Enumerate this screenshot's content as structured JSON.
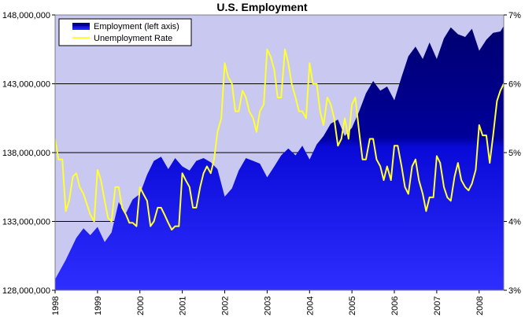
{
  "chart_data": {
    "type": "area",
    "title": "U.S. Employment",
    "legend_placement": "top-left",
    "colors": {
      "plot_bg": "#c8c8f0",
      "employment_top": "#00007a",
      "employment_bottom": "#2a2aff",
      "rate_line": "#ffff33",
      "grid": "#000000"
    },
    "y_left": {
      "min": 128000000,
      "max": 148000000,
      "ticks": [
        128000000,
        133000000,
        138000000,
        143000000,
        148000000
      ],
      "tick_labels": [
        "128,000,000",
        "133,000,000",
        "138,000,000",
        "143,000,000",
        "148,000,000"
      ]
    },
    "y_right": {
      "min": 3,
      "max": 7,
      "ticks": [
        3,
        4,
        5,
        6,
        7
      ],
      "tick_labels": [
        "3%",
        "4%",
        "5%",
        "6%",
        "7%"
      ]
    },
    "x_axis": {
      "min": 1998,
      "max": 2008.58,
      "ticks": [
        1998,
        1999,
        2000,
        2001,
        2002,
        2003,
        2004,
        2005,
        2006,
        2007,
        2008
      ],
      "tick_labels": [
        "1998",
        "1999",
        "2000",
        "2001",
        "2002",
        "2003",
        "2004",
        "2005",
        "2006",
        "2007",
        "2008"
      ]
    },
    "grid": "horizontal",
    "series": [
      {
        "name": "Employment (left axis)",
        "axis": "left",
        "kind": "area",
        "x": [
          1998.0,
          1998.25,
          1998.5,
          1998.67,
          1998.83,
          1999.0,
          1999.17,
          1999.33,
          1999.5,
          1999.67,
          1999.83,
          2000.0,
          2000.17,
          2000.33,
          2000.5,
          2000.67,
          2000.83,
          2001.0,
          2001.17,
          2001.33,
          2001.5,
          2001.67,
          2001.83,
          2002.0,
          2002.17,
          2002.33,
          2002.5,
          2002.67,
          2002.83,
          2003.0,
          2003.17,
          2003.33,
          2003.5,
          2003.67,
          2003.83,
          2004.0,
          2004.17,
          2004.33,
          2004.5,
          2004.67,
          2004.83,
          2005.0,
          2005.17,
          2005.33,
          2005.5,
          2005.67,
          2005.83,
          2006.0,
          2006.17,
          2006.33,
          2006.5,
          2006.67,
          2006.83,
          2007.0,
          2007.17,
          2007.33,
          2007.5,
          2007.67,
          2007.83,
          2008.0,
          2008.17,
          2008.33,
          2008.5,
          2008.58
        ],
        "values": [
          128800000,
          130200000,
          131800000,
          132500000,
          132000000,
          132600000,
          131500000,
          132200000,
          134400000,
          133600000,
          134600000,
          135000000,
          136400000,
          137400000,
          137700000,
          136800000,
          137600000,
          137000000,
          136700000,
          137400000,
          137600000,
          137300000,
          136800000,
          134800000,
          135400000,
          136700000,
          137600000,
          137400000,
          137200000,
          136200000,
          137000000,
          137800000,
          138300000,
          137800000,
          138500000,
          137500000,
          138600000,
          139200000,
          140100000,
          140400000,
          139200000,
          139800000,
          141000000,
          142300000,
          143200000,
          142500000,
          142800000,
          141800000,
          143500000,
          145000000,
          145700000,
          144800000,
          146000000,
          144800000,
          146300000,
          147100000,
          146600000,
          146400000,
          147000000,
          145400000,
          146200000,
          146700000,
          146800000,
          147200000
        ]
      },
      {
        "name": "Unemployment Rate",
        "axis": "right",
        "kind": "line",
        "x": [
          1998.0,
          1998.08,
          1998.17,
          1998.25,
          1998.33,
          1998.42,
          1998.5,
          1998.58,
          1998.67,
          1998.75,
          1998.83,
          1998.92,
          1999.0,
          1999.08,
          1999.17,
          1999.25,
          1999.33,
          1999.42,
          1999.5,
          1999.58,
          1999.67,
          1999.75,
          1999.83,
          1999.92,
          2000.0,
          2000.08,
          2000.17,
          2000.25,
          2000.33,
          2000.42,
          2000.5,
          2000.58,
          2000.67,
          2000.75,
          2000.83,
          2000.92,
          2001.0,
          2001.08,
          2001.17,
          2001.25,
          2001.33,
          2001.42,
          2001.5,
          2001.58,
          2001.67,
          2001.75,
          2001.83,
          2001.92,
          2002.0,
          2002.08,
          2002.17,
          2002.25,
          2002.33,
          2002.42,
          2002.5,
          2002.58,
          2002.67,
          2002.75,
          2002.83,
          2002.92,
          2003.0,
          2003.08,
          2003.17,
          2003.25,
          2003.33,
          2003.42,
          2003.5,
          2003.58,
          2003.67,
          2003.75,
          2003.83,
          2003.92,
          2004.0,
          2004.08,
          2004.17,
          2004.25,
          2004.33,
          2004.42,
          2004.5,
          2004.58,
          2004.67,
          2004.75,
          2004.83,
          2004.92,
          2005.0,
          2005.08,
          2005.17,
          2005.25,
          2005.33,
          2005.42,
          2005.5,
          2005.58,
          2005.67,
          2005.75,
          2005.83,
          2005.92,
          2006.0,
          2006.08,
          2006.17,
          2006.25,
          2006.33,
          2006.42,
          2006.5,
          2006.58,
          2006.67,
          2006.75,
          2006.83,
          2006.92,
          2007.0,
          2007.08,
          2007.17,
          2007.25,
          2007.33,
          2007.42,
          2007.5,
          2007.58,
          2007.67,
          2007.75,
          2007.83,
          2007.92,
          2008.0,
          2008.08,
          2008.17,
          2008.25,
          2008.33,
          2008.42,
          2008.5,
          2008.58
        ],
        "values": [
          5.2,
          4.9,
          4.9,
          4.15,
          4.3,
          4.65,
          4.7,
          4.5,
          4.4,
          4.25,
          4.1,
          4.0,
          4.75,
          4.6,
          4.3,
          4.05,
          4.0,
          4.5,
          4.5,
          4.2,
          4.1,
          3.98,
          3.98,
          3.93,
          4.5,
          4.4,
          4.3,
          3.93,
          4.0,
          4.2,
          4.2,
          4.1,
          3.98,
          3.88,
          3.93,
          3.93,
          4.7,
          4.6,
          4.5,
          4.2,
          4.2,
          4.5,
          4.7,
          4.8,
          4.7,
          4.9,
          5.3,
          5.5,
          6.3,
          6.1,
          6.0,
          5.6,
          5.6,
          5.9,
          5.8,
          5.6,
          5.5,
          5.3,
          5.6,
          5.7,
          6.5,
          6.4,
          6.2,
          5.8,
          5.8,
          6.5,
          6.3,
          6.0,
          5.8,
          5.6,
          5.6,
          5.5,
          6.3,
          6.0,
          6.0,
          5.6,
          5.4,
          5.8,
          5.7,
          5.5,
          5.1,
          5.2,
          5.5,
          5.2,
          5.7,
          5.8,
          5.3,
          4.9,
          4.9,
          5.2,
          5.2,
          4.9,
          4.8,
          4.6,
          4.8,
          4.6,
          5.1,
          5.1,
          4.8,
          4.5,
          4.4,
          4.8,
          4.9,
          4.6,
          4.4,
          4.15,
          4.35,
          4.35,
          4.95,
          4.85,
          4.5,
          4.35,
          4.3,
          4.65,
          4.85,
          4.6,
          4.5,
          4.45,
          4.55,
          4.75,
          5.4,
          5.25,
          5.25,
          4.85,
          5.25,
          5.75,
          5.9,
          6.0
        ]
      }
    ]
  }
}
